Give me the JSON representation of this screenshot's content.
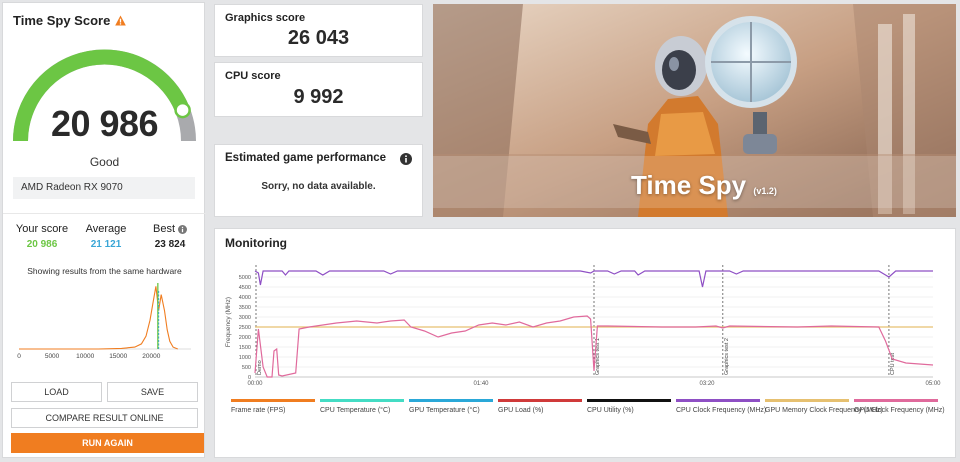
{
  "score_panel": {
    "title": "Time Spy Score",
    "score": "20 986",
    "score_value": 20986,
    "gauge_fraction": 0.88,
    "rating": "Good",
    "gpu": "AMD Radeon RX 9070",
    "your_score_label": "Your score",
    "your_score": "20 986",
    "average_label": "Average",
    "average": "21 121",
    "best_label": "Best",
    "best": "23 824",
    "histogram_caption": "Showing results from the same hardware",
    "colors": {
      "green": "#6cc644",
      "blue": "#3aa6d6",
      "gray": "#a9aaad",
      "orange": "#f07d20"
    }
  },
  "histogram": {
    "x_ticks": [
      "0",
      "5000",
      "10000",
      "15000",
      "20000"
    ],
    "x_tick_values": [
      0,
      5000,
      10000,
      15000,
      20000
    ],
    "xlim": [
      0,
      26000
    ],
    "profile": [
      [
        0,
        0
      ],
      [
        12000,
        0
      ],
      [
        15500,
        0.01
      ],
      [
        17500,
        0.03
      ],
      [
        18500,
        0.08
      ],
      [
        19200,
        0.2
      ],
      [
        19800,
        0.45
      ],
      [
        20300,
        0.75
      ],
      [
        20700,
        0.98
      ],
      [
        21100,
        0.6
      ],
      [
        21500,
        0.85
      ],
      [
        22000,
        0.6
      ],
      [
        22400,
        0.3
      ],
      [
        22800,
        0.12
      ],
      [
        23300,
        0.03
      ],
      [
        24000,
        0
      ]
    ],
    "your_score": 20986,
    "average": 21121
  },
  "cards": {
    "graphics_label": "Graphics score",
    "graphics_value": "26 043",
    "cpu_label": "CPU score",
    "cpu_value": "9 992",
    "estimated_label": "Estimated game performance",
    "estimated_text": "Sorry, no data available."
  },
  "hero": {
    "title": "Time Spy",
    "version": "(v1.2)"
  },
  "buttons": {
    "load": "LOAD",
    "save": "SAVE",
    "compare": "COMPARE RESULT ONLINE",
    "run_again": "RUN AGAIN"
  },
  "monitoring": {
    "title": "Monitoring",
    "y_label": "Frequency (MHz)",
    "y_ticks": [
      "0",
      "500",
      "1000",
      "1500",
      "2000",
      "2500",
      "3000",
      "3500",
      "4000",
      "4500",
      "5000"
    ],
    "x_ticks": [
      "00:00",
      "01:40",
      "03:20",
      "05:00"
    ],
    "markers": [
      {
        "label": "Demo",
        "t": 0.0
      },
      {
        "label": "Graphics test 1",
        "t": 0.5
      },
      {
        "label": "Graphics test 2",
        "t": 0.69
      },
      {
        "label": "CPU test",
        "t": 0.935
      }
    ],
    "legend": [
      {
        "label": "Frame rate (FPS)",
        "color": "#f07d20"
      },
      {
        "label": "CPU Temperature (°C)",
        "color": "#44dcc4"
      },
      {
        "label": "GPU Temperature (°C)",
        "color": "#2aa8d8"
      },
      {
        "label": "GPU Load (%)",
        "color": "#d03a3a"
      },
      {
        "label": "CPU Utility (%)",
        "color": "#111111"
      },
      {
        "label": "CPU Clock Frequency (MHz)",
        "color": "#8e4fc4"
      },
      {
        "label": "GPU Memory Clock Frequency (MHz)",
        "color": "#e6c070"
      },
      {
        "label": "GPU Clock Frequency (MHz)",
        "color": "#e06a9c"
      }
    ],
    "series": {
      "cpu_clock": [
        [
          0,
          5300
        ],
        [
          0.005,
          5200
        ],
        [
          0.008,
          4600
        ],
        [
          0.012,
          5300
        ],
        [
          0.04,
          5300
        ],
        [
          0.045,
          5100
        ],
        [
          0.05,
          5300
        ],
        [
          0.09,
          5300
        ],
        [
          0.1,
          5100
        ],
        [
          0.11,
          5300
        ],
        [
          0.19,
          5300
        ],
        [
          0.2,
          5150
        ],
        [
          0.21,
          5300
        ],
        [
          0.48,
          5300
        ],
        [
          0.495,
          5200
        ],
        [
          0.5,
          5300
        ],
        [
          0.52,
          5300
        ],
        [
          0.53,
          5150
        ],
        [
          0.54,
          5300
        ],
        [
          0.56,
          5300
        ],
        [
          0.565,
          5100
        ],
        [
          0.575,
          5300
        ],
        [
          0.655,
          5300
        ],
        [
          0.66,
          4500
        ],
        [
          0.665,
          5300
        ],
        [
          0.7,
          5300
        ],
        [
          0.71,
          5150
        ],
        [
          0.72,
          5300
        ],
        [
          0.92,
          5300
        ],
        [
          0.935,
          5000
        ],
        [
          0.945,
          5300
        ],
        [
          1.0,
          5300
        ]
      ],
      "gpu_mem_clock": [
        [
          0,
          2500
        ],
        [
          1.0,
          2500
        ]
      ],
      "gpu_clock": [
        [
          0,
          200
        ],
        [
          0.005,
          2400
        ],
        [
          0.012,
          500
        ],
        [
          0.018,
          0
        ],
        [
          0.025,
          0
        ],
        [
          0.028,
          1300
        ],
        [
          0.032,
          1400
        ],
        [
          0.035,
          100
        ],
        [
          0.04,
          50
        ],
        [
          0.06,
          200
        ],
        [
          0.065,
          2400
        ],
        [
          0.08,
          2500
        ],
        [
          0.12,
          2700
        ],
        [
          0.15,
          2800
        ],
        [
          0.18,
          2700
        ],
        [
          0.2,
          2800
        ],
        [
          0.22,
          2850
        ],
        [
          0.23,
          2500
        ],
        [
          0.25,
          2300
        ],
        [
          0.27,
          2000
        ],
        [
          0.29,
          2200
        ],
        [
          0.31,
          2300
        ],
        [
          0.33,
          2600
        ],
        [
          0.35,
          2700
        ],
        [
          0.37,
          2600
        ],
        [
          0.39,
          2750
        ],
        [
          0.41,
          2500
        ],
        [
          0.43,
          2700
        ],
        [
          0.45,
          2800
        ],
        [
          0.47,
          3000
        ],
        [
          0.49,
          3050
        ],
        [
          0.495,
          2900
        ],
        [
          0.5,
          300
        ],
        [
          0.505,
          2550
        ],
        [
          0.52,
          2550
        ],
        [
          0.6,
          2500
        ],
        [
          0.65,
          2500
        ],
        [
          0.68,
          2550
        ],
        [
          0.69,
          2450
        ],
        [
          0.7,
          2550
        ],
        [
          0.8,
          2500
        ],
        [
          0.85,
          2550
        ],
        [
          0.92,
          2500
        ],
        [
          0.93,
          1800
        ],
        [
          0.94,
          900
        ],
        [
          0.96,
          700
        ],
        [
          1.0,
          600
        ]
      ]
    }
  }
}
